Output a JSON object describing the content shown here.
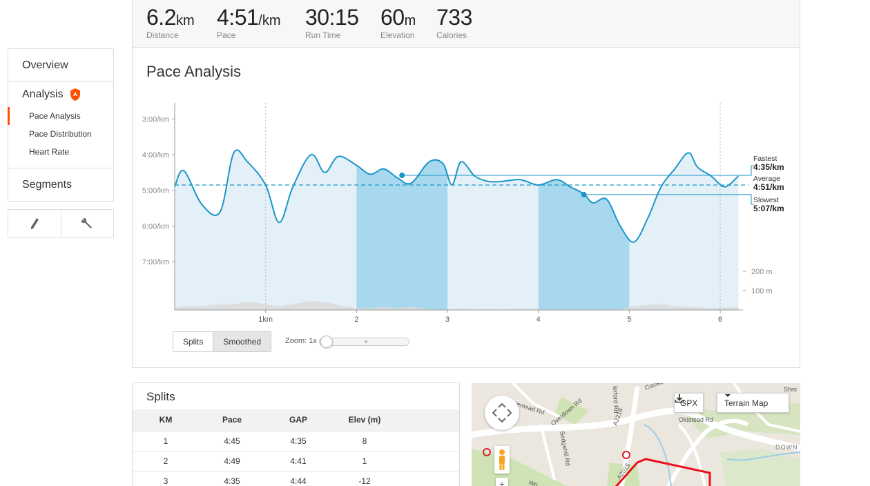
{
  "stats": [
    {
      "value": "6.2",
      "unit": "km",
      "label": "Distance"
    },
    {
      "value": "4:51",
      "unit": "/km",
      "label": "Pace"
    },
    {
      "value": "30:15",
      "unit": "",
      "label": "Run Time"
    },
    {
      "value": "60",
      "unit": "m",
      "label": "Elevation"
    },
    {
      "value": "733",
      "unit": "",
      "label": "Calories"
    }
  ],
  "nav": {
    "overview": "Overview",
    "analysis": "Analysis",
    "analysis_items": [
      "Pace Analysis",
      "Pace Distribution",
      "Heart Rate"
    ],
    "segments": "Segments",
    "accent_color": "#fc5200"
  },
  "card": {
    "title": "Pace Analysis"
  },
  "chart_data": {
    "type": "line",
    "xlabel": "",
    "ylabel": "",
    "x_ticks": [
      "1km",
      "2",
      "3",
      "4",
      "5",
      "6"
    ],
    "y_ticks": [
      "3:00/km",
      "4:00/km",
      "5:00/km",
      "6:00/km",
      "7:00/km"
    ],
    "elev_ticks": [
      "200 m",
      "100 m"
    ],
    "xlim": [
      0,
      6.25
    ],
    "pace_range_min_per_km": [
      2.55,
      8.35
    ],
    "average_pace_min_per_km": 4.85,
    "highlighted_km": [
      [
        2,
        3
      ],
      [
        4,
        5
      ]
    ],
    "annotations": [
      {
        "label": "Fastest",
        "value": "4:35/km"
      },
      {
        "label": "Average",
        "value": "4:51/km"
      },
      {
        "label": "Slowest",
        "value": "5:07/km"
      }
    ],
    "series": [
      {
        "x": [
          0,
          0.1,
          0.3,
          0.5,
          0.65,
          0.8,
          1.0,
          1.15,
          1.3,
          1.5,
          1.65,
          1.8,
          2.0,
          2.15,
          2.3,
          2.45,
          2.6,
          2.8,
          2.95,
          3.05,
          3.15,
          3.3,
          3.45,
          3.6,
          3.8,
          4.0,
          4.2,
          4.35,
          4.5,
          4.6,
          4.75,
          4.9,
          5.05,
          5.2,
          5.35,
          5.5,
          5.65,
          5.75,
          5.9,
          6.05,
          6.2
        ],
        "pace": [
          4.9,
          4.45,
          5.4,
          5.6,
          3.95,
          4.2,
          4.85,
          5.9,
          4.9,
          4.0,
          4.5,
          4.05,
          4.3,
          4.55,
          4.4,
          4.65,
          4.8,
          4.2,
          4.25,
          4.85,
          4.2,
          4.6,
          4.75,
          4.75,
          4.7,
          4.85,
          4.7,
          4.9,
          5.1,
          5.35,
          5.25,
          6.0,
          6.45,
          5.8,
          4.9,
          4.4,
          3.95,
          4.35,
          4.6,
          4.9,
          4.6
        ],
        "elevation_m": [
          10,
          18,
          20,
          30,
          30,
          40,
          30,
          20,
          30,
          45,
          40,
          25,
          10,
          10,
          15,
          10,
          15,
          5,
          2,
          2,
          5,
          2,
          2,
          2,
          5,
          3,
          3,
          2,
          2,
          2,
          3,
          5,
          20,
          25,
          30,
          20,
          15,
          15,
          10,
          12,
          15
        ]
      }
    ]
  },
  "chart_controls": {
    "splits": "Splits",
    "smoothed": "Smoothed",
    "zoom_label": "Zoom: 1x"
  },
  "splits": {
    "title": "Splits",
    "headers": [
      "KM",
      "Pace",
      "GAP",
      "Elev (m)"
    ],
    "rows": [
      [
        "1",
        "4:45",
        "4:35",
        "8"
      ],
      [
        "2",
        "4:49",
        "4:41",
        "1"
      ],
      [
        "3",
        "4:35",
        "4:44",
        "-12"
      ]
    ]
  },
  "map": {
    "gpx_label": "GPX",
    "terrain_label": "Terrain Map",
    "zoom_in": "+",
    "labels": [
      "Moremead Rd",
      "Overdown Rd",
      "lerford Rd",
      "Conisbo",
      "Sedgehill Rd",
      "A2218",
      "Oldstead Rd",
      "A2015",
      "Shro",
      "DOWN",
      "Rd",
      "Wo"
    ],
    "route_color": "#e8101c"
  }
}
